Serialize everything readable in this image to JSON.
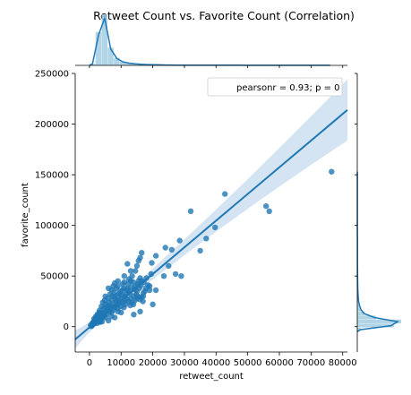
{
  "chart_data": {
    "type": "scatter",
    "title": "Retweet Count vs. Favorite Count (Correlation)",
    "xlabel": "retweet_count",
    "ylabel": "favorite_count",
    "xlim": [
      -4500,
      81500
    ],
    "ylim": [
      -25000,
      250000
    ],
    "x_ticks": [
      0,
      10000,
      20000,
      30000,
      40000,
      50000,
      60000,
      70000,
      80000
    ],
    "y_ticks": [
      0,
      50000,
      100000,
      150000,
      200000,
      250000
    ],
    "legend_text": "pearsonr = 0.93; p = 0",
    "legend_position": "top-right",
    "grid": false,
    "marginals": "histogram + kde on top (retweet_count) and right (favorite_count)",
    "colors": {
      "scatter": "#1f77b4",
      "band": "#c6dbef",
      "line": "#1f77b4",
      "hist": "#9ecae1",
      "kde": "#1f77b4"
    },
    "regression": {
      "x": [
        -4500,
        81500
      ],
      "y": [
        -12500,
        214000
      ]
    },
    "points": [
      [
        76500,
        153000
      ],
      [
        56800,
        114000
      ],
      [
        55800,
        119000
      ],
      [
        42800,
        131000
      ],
      [
        39700,
        98000
      ],
      [
        36900,
        87000
      ],
      [
        35000,
        75000
      ],
      [
        32000,
        114000
      ],
      [
        29000,
        50000
      ],
      [
        28500,
        85000
      ],
      [
        27200,
        52000
      ],
      [
        26000,
        76000
      ],
      [
        25000,
        60000
      ],
      [
        24000,
        78000
      ],
      [
        23500,
        50000
      ],
      [
        21000,
        70000
      ],
      [
        19700,
        63000
      ],
      [
        19500,
        52000
      ],
      [
        19000,
        40000
      ],
      [
        18500,
        41000
      ],
      [
        17800,
        38000
      ],
      [
        16500,
        73000
      ],
      [
        16000,
        68000
      ],
      [
        16000,
        48000
      ],
      [
        15500,
        45000
      ],
      [
        15000,
        60000
      ],
      [
        14500,
        55000
      ],
      [
        14000,
        30000
      ],
      [
        13500,
        50000
      ],
      [
        13000,
        45000
      ],
      [
        12500,
        47000
      ],
      [
        12000,
        38000
      ],
      [
        11500,
        32000
      ],
      [
        11000,
        44000
      ],
      [
        10500,
        36000
      ],
      [
        10000,
        28000
      ],
      [
        9500,
        33000
      ],
      [
        9000,
        40000
      ],
      [
        8500,
        25000
      ],
      [
        8000,
        30000
      ],
      [
        7500,
        22000
      ],
      [
        7000,
        26000
      ],
      [
        6500,
        18000
      ],
      [
        6000,
        21000
      ],
      [
        5500,
        16000
      ],
      [
        5000,
        19000
      ],
      [
        4500,
        12000
      ],
      [
        4000,
        14000
      ],
      [
        3500,
        10000
      ],
      [
        3000,
        8000
      ],
      [
        2500,
        6000
      ],
      [
        2000,
        5000
      ],
      [
        1500,
        3000
      ],
      [
        1000,
        2000
      ],
      [
        800,
        1000
      ],
      [
        12000,
        62000
      ],
      [
        14000,
        12000
      ],
      [
        16000,
        15000
      ],
      [
        20000,
        22000
      ],
      [
        10000,
        14000
      ],
      [
        8000,
        9000
      ],
      [
        6000,
        6000
      ],
      [
        4000,
        5000
      ],
      [
        3000,
        14000
      ],
      [
        2000,
        10000
      ],
      [
        5000,
        30000
      ],
      [
        7000,
        36000
      ],
      [
        9000,
        22000
      ],
      [
        11000,
        25000
      ],
      [
        13000,
        28000
      ],
      [
        15000,
        35000
      ],
      [
        17000,
        33000
      ],
      [
        9000,
        15000
      ],
      [
        7000,
        14000
      ],
      [
        5000,
        9000
      ],
      [
        3500,
        7000
      ],
      [
        2500,
        12000
      ],
      [
        1500,
        8000
      ],
      [
        6500,
        32000
      ],
      [
        8500,
        38000
      ],
      [
        10500,
        42000
      ],
      [
        12500,
        35000
      ],
      [
        14500,
        40000
      ],
      [
        16500,
        45000
      ],
      [
        18000,
        48000
      ],
      [
        600,
        500
      ],
      [
        1200,
        4000
      ],
      [
        1800,
        6500
      ],
      [
        2200,
        9000
      ],
      [
        2800,
        11000
      ],
      [
        3200,
        16000
      ],
      [
        3800,
        20000
      ],
      [
        4200,
        24000
      ],
      [
        4800,
        26000
      ],
      [
        5200,
        22000
      ],
      [
        5800,
        28000
      ],
      [
        6200,
        24000
      ],
      [
        6800,
        20000
      ],
      [
        7200,
        30000
      ],
      [
        7800,
        34000
      ],
      [
        8200,
        27000
      ],
      [
        8800,
        31000
      ],
      [
        9200,
        26000
      ],
      [
        9800,
        35000
      ],
      [
        10200,
        31000
      ],
      [
        10800,
        38000
      ],
      [
        11200,
        30000
      ],
      [
        11800,
        36000
      ],
      [
        12200,
        42000
      ],
      [
        12800,
        33000
      ],
      [
        13200,
        39000
      ],
      [
        13800,
        44000
      ],
      [
        14200,
        37000
      ],
      [
        14800,
        32000
      ],
      [
        15200,
        42000
      ],
      [
        15800,
        38000
      ],
      [
        16200,
        41000
      ],
      [
        17200,
        44000
      ],
      [
        17500,
        35000
      ],
      [
        400,
        1500
      ],
      [
        900,
        3500
      ],
      [
        1400,
        5500
      ],
      [
        1900,
        7500
      ],
      [
        2400,
        3500
      ],
      [
        2900,
        5000
      ],
      [
        3400,
        4500
      ],
      [
        3900,
        8500
      ],
      [
        4400,
        10000
      ],
      [
        4900,
        14000
      ],
      [
        5400,
        12000
      ],
      [
        5900,
        17000
      ],
      [
        6400,
        15000
      ],
      [
        6900,
        10000
      ],
      [
        7400,
        16000
      ],
      [
        7900,
        19000
      ],
      [
        8400,
        21000
      ],
      [
        8900,
        18000
      ],
      [
        9400,
        23000
      ],
      [
        9900,
        20000
      ],
      [
        10400,
        24000
      ],
      [
        10900,
        19000
      ],
      [
        11400,
        22000
      ],
      [
        11900,
        27000
      ],
      [
        12400,
        25000
      ],
      [
        12900,
        21000
      ],
      [
        13400,
        24000
      ],
      [
        13900,
        22000
      ],
      [
        14400,
        26000
      ],
      [
        14900,
        28000
      ],
      [
        15400,
        30000
      ],
      [
        15900,
        27000
      ],
      [
        16400,
        29000
      ],
      [
        16900,
        25000
      ],
      [
        6000,
        38000
      ],
      [
        7500,
        40000
      ],
      [
        9000,
        45000
      ],
      [
        13000,
        55000
      ],
      [
        15500,
        65000
      ],
      [
        11000,
        50000
      ],
      [
        8000,
        43000
      ],
      [
        17000,
        30000
      ],
      [
        19000,
        36000
      ],
      [
        21000,
        36000
      ],
      [
        4500,
        18000
      ],
      [
        3300,
        13000
      ]
    ],
    "top_hist": [
      0.03,
      0.62,
      0.95,
      0.33,
      0.14,
      0.07,
      0.045,
      0.03,
      0.022,
      0.016,
      0.012,
      0.01,
      0.008,
      0.007,
      0.006,
      0.005,
      0.005,
      0.004,
      0.004,
      0.003,
      0.003,
      0.003,
      0.003,
      0.003,
      0.003,
      0.002,
      0.002,
      0.002,
      0.002,
      0.002,
      0.002,
      0.002,
      0.002,
      0.002,
      0.002,
      0.002,
      0.002,
      0.002,
      0.002,
      0.002
    ],
    "right_hist": [
      0.06,
      0.75,
      0.9,
      0.38,
      0.15,
      0.08,
      0.05,
      0.03,
      0.022,
      0.016,
      0.012,
      0.01,
      0.008,
      0.007,
      0.006,
      0.005,
      0.004,
      0.004,
      0.003,
      0.003,
      0.003,
      0.003,
      0.003,
      0.003,
      0.002,
      0.002,
      0.002,
      0.002,
      0.002,
      0.002,
      0.002,
      0.002,
      0.002,
      0.002,
      0.002,
      0.002,
      0.002,
      0.002,
      0.002,
      0.002
    ]
  }
}
